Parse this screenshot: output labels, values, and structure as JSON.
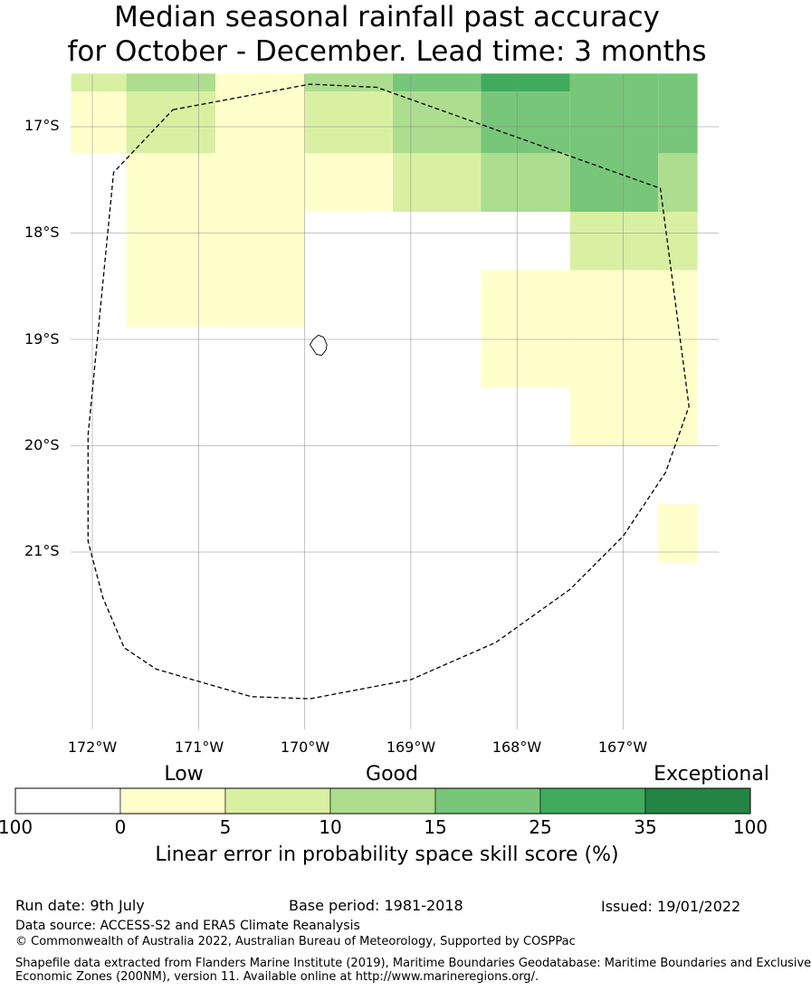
{
  "title": {
    "line1": "Median seasonal rainfall past accuracy",
    "line2": "for October - December. Lead time: 3 months"
  },
  "map": {
    "lat_labels": [
      "17°S",
      "18°S",
      "19°S",
      "20°S",
      "21°S"
    ],
    "lon_labels": [
      "172°W",
      "171°W",
      "170°W",
      "169°W",
      "168°W",
      "167°W"
    ],
    "lat_range": [
      -22.55,
      -16.5
    ],
    "lon_range": [
      -172.2,
      -166.3
    ],
    "grid": true,
    "grid_cells": [
      {
        "lon": [
          -172.2,
          -171.68
        ],
        "lat": [
          -16.5,
          -16.67
        ],
        "score": 7.5
      },
      {
        "lon": [
          -172.2,
          -171.68
        ],
        "lat": [
          -16.67,
          -17.25
        ],
        "score": 2.5
      },
      {
        "lon": [
          -171.68,
          -170.84
        ],
        "lat": [
          -16.5,
          -16.67
        ],
        "score": 12.5
      },
      {
        "lon": [
          -171.68,
          -170.84
        ],
        "lat": [
          -16.67,
          -17.25
        ],
        "score": 7.5
      },
      {
        "lon": [
          -171.68,
          -170.84
        ],
        "lat": [
          -17.25,
          -18.88
        ],
        "score": 2.5
      },
      {
        "lon": [
          -170.84,
          -170.0
        ],
        "lat": [
          -16.5,
          -18.88
        ],
        "score": 2.5
      },
      {
        "lon": [
          -170.0,
          -169.17
        ],
        "lat": [
          -16.5,
          -16.67
        ],
        "score": 12.5
      },
      {
        "lon": [
          -170.0,
          -169.17
        ],
        "lat": [
          -16.67,
          -17.25
        ],
        "score": 7.5
      },
      {
        "lon": [
          -170.0,
          -169.17
        ],
        "lat": [
          -17.25,
          -17.8
        ],
        "score": 2.5
      },
      {
        "lon": [
          -169.17,
          -168.34
        ],
        "lat": [
          -16.5,
          -16.67
        ],
        "score": 20
      },
      {
        "lon": [
          -169.17,
          -168.34
        ],
        "lat": [
          -16.67,
          -17.25
        ],
        "score": 12.5
      },
      {
        "lon": [
          -169.17,
          -168.34
        ],
        "lat": [
          -17.25,
          -17.8
        ],
        "score": 7.5
      },
      {
        "lon": [
          -168.34,
          -167.5
        ],
        "lat": [
          -16.5,
          -16.67
        ],
        "score": 30
      },
      {
        "lon": [
          -168.34,
          -167.5
        ],
        "lat": [
          -16.67,
          -17.25
        ],
        "score": 20
      },
      {
        "lon": [
          -168.34,
          -167.5
        ],
        "lat": [
          -17.25,
          -17.8
        ],
        "score": 12.5
      },
      {
        "lon": [
          -168.34,
          -167.5
        ],
        "lat": [
          -18.35,
          -19.45
        ],
        "score": 2.5
      },
      {
        "lon": [
          -167.5,
          -166.67
        ],
        "lat": [
          -16.5,
          -17.8
        ],
        "score": 20
      },
      {
        "lon": [
          -167.5,
          -166.3
        ],
        "lat": [
          -17.8,
          -18.35
        ],
        "score": 7.5
      },
      {
        "lon": [
          -167.5,
          -166.3
        ],
        "lat": [
          -18.35,
          -20.0
        ],
        "score": 2.5
      },
      {
        "lon": [
          -166.67,
          -166.3
        ],
        "lat": [
          -16.5,
          -17.25
        ],
        "score": 20
      },
      {
        "lon": [
          -166.67,
          -166.3
        ],
        "lat": [
          -17.25,
          -17.8
        ],
        "score": 12.5
      },
      {
        "lon": [
          -166.67,
          -166.3
        ],
        "lat": [
          -20.55,
          -21.1
        ],
        "score": 2.5
      }
    ],
    "eez_boundary": [
      [
        -171.24,
        -16.84
      ],
      [
        -169.95,
        -16.6
      ],
      [
        -169.32,
        -16.63
      ],
      [
        -166.65,
        -17.58
      ],
      [
        -166.38,
        -19.63
      ],
      [
        -166.6,
        -20.25
      ],
      [
        -167.0,
        -20.85
      ],
      [
        -167.5,
        -21.35
      ],
      [
        -168.2,
        -21.85
      ],
      [
        -169.0,
        -22.2
      ],
      [
        -169.95,
        -22.38
      ],
      [
        -170.5,
        -22.36
      ],
      [
        -171.4,
        -22.1
      ],
      [
        -171.7,
        -21.9
      ],
      [
        -171.9,
        -21.43
      ],
      [
        -172.04,
        -20.9
      ],
      [
        -172.04,
        -19.9
      ],
      [
        -171.8,
        -17.43
      ],
      [
        -171.24,
        -16.84
      ]
    ],
    "island_outline": [
      [
        -169.92,
        -19.0
      ],
      [
        -169.87,
        -18.96
      ],
      [
        -169.82,
        -18.98
      ],
      [
        -169.79,
        -19.05
      ],
      [
        -169.8,
        -19.1
      ],
      [
        -169.84,
        -19.15
      ],
      [
        -169.89,
        -19.14
      ],
      [
        -169.93,
        -19.08
      ],
      [
        -169.95,
        -19.05
      ],
      [
        -169.92,
        -19.0
      ]
    ]
  },
  "legend": {
    "categories": [
      {
        "label": "Low"
      },
      {
        "label": "Good"
      },
      {
        "label": "Exceptional"
      }
    ],
    "bins": [
      {
        "color": "#ffffff"
      },
      {
        "color": "#ffffcc"
      },
      {
        "color": "#d9f0a3"
      },
      {
        "color": "#addd8e"
      },
      {
        "color": "#78c679"
      },
      {
        "color": "#41ab5d"
      },
      {
        "color": "#238443"
      }
    ],
    "ticks": [
      "100",
      "0",
      "5",
      "10",
      "15",
      "25",
      "35",
      "100"
    ],
    "label": "Linear error in probability space skill score (%)"
  },
  "footer": {
    "run_date": "Run date: 9th July",
    "base_period": "Base period: 1981-2018",
    "issued": "Issued: 19/01/2022",
    "data_source": "Data source: ACCESS-S2 and ERA5 Climate Reanalysis",
    "copyright": "© Commonwealth of Australia 2022, Australian Bureau of Meteorology, Supported by COSPPac",
    "shapefile_line1": "Shapefile data extracted from Flanders Marine Institute (2019), Maritime Boundaries Geodatabase: Maritime Boundaries and Exclusive",
    "shapefile_line2": "Economic Zones (200NM), version 11. Available online at http://www.marineregions.org/."
  }
}
